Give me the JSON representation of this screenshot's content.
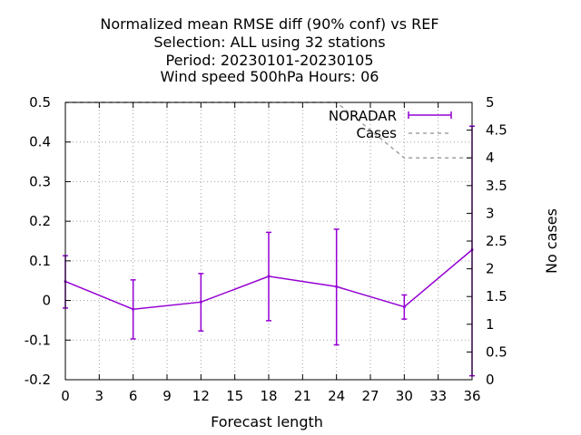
{
  "chart_data": {
    "type": "line",
    "title_lines": [
      "Normalized mean RMSE diff (90% conf) vs REF",
      "Selection: ALL using    32 stations",
      "Period: 20230101-20230105",
      "Wind speed 500hPa   Hours:  06"
    ],
    "xlabel": "Forecast length",
    "ylabel": "",
    "y2label": "No cases",
    "xlim": [
      0,
      36
    ],
    "ylim": [
      -0.2,
      0.5
    ],
    "y2lim": [
      0,
      5
    ],
    "x_ticks": [
      "0",
      "3",
      "6",
      "9",
      "12",
      "15",
      "18",
      "21",
      "24",
      "27",
      "30",
      "33",
      "36"
    ],
    "y_ticks": [
      "-0.2",
      "-0.1",
      "0",
      "0.1",
      "0.2",
      "0.3",
      "0.4",
      "0.5"
    ],
    "y2_ticks": [
      "0",
      "0.5",
      "1",
      "1.5",
      "2",
      "2.5",
      "3",
      "3.5",
      "4",
      "4.5",
      "5"
    ],
    "grid": true,
    "legend_position": "top-right",
    "series": [
      {
        "name": "NORADAR",
        "axis": "left",
        "style": "line-errorbars",
        "color": "#9400d3",
        "x": [
          0,
          6,
          12,
          18,
          24,
          30,
          36
        ],
        "y": [
          0.048,
          -0.022,
          -0.004,
          0.061,
          0.035,
          -0.016,
          0.128
        ],
        "err_low": [
          -0.019,
          -0.097,
          -0.077,
          -0.051,
          -0.112,
          -0.047,
          -0.19
        ],
        "err_high": [
          0.113,
          0.052,
          0.068,
          0.172,
          0.18,
          0.014,
          0.44
        ]
      },
      {
        "name": "Cases",
        "axis": "right",
        "style": "dashed",
        "color": "#a0a0a0",
        "x": [
          0,
          6,
          12,
          18,
          24,
          30,
          36
        ],
        "y": [
          5,
          5,
          5,
          5,
          5,
          4,
          4
        ]
      }
    ]
  }
}
